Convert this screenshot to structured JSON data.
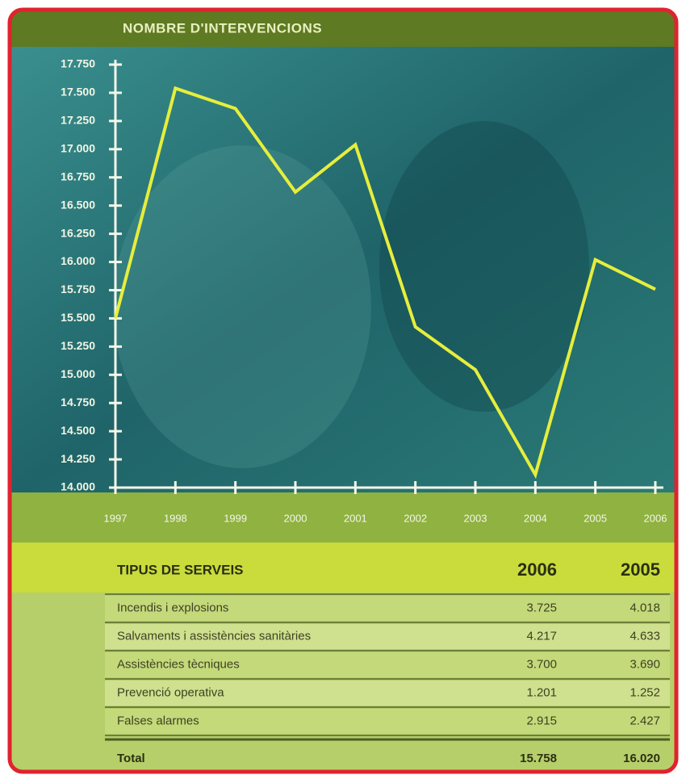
{
  "chart_data": {
    "type": "line",
    "title": "NOMBRE D'INTERVENCIONS",
    "x": [
      "1997",
      "1998",
      "1999",
      "2000",
      "2001",
      "2002",
      "2003",
      "2004",
      "2005",
      "2006"
    ],
    "values": [
      15500,
      17540,
      17360,
      16620,
      17040,
      15425,
      15045,
      14115,
      16020,
      15758
    ],
    "color": "#e6ee3c",
    "ylim": [
      14000,
      17750
    ],
    "yticks": [
      {
        "value": 14000,
        "label": "14.000"
      },
      {
        "value": 14250,
        "label": "14.250"
      },
      {
        "value": 14500,
        "label": "14.500"
      },
      {
        "value": 14750,
        "label": "14.750"
      },
      {
        "value": 15000,
        "label": "15.000"
      },
      {
        "value": 15250,
        "label": "15.250"
      },
      {
        "value": 15500,
        "label": "15.500"
      },
      {
        "value": 15750,
        "label": "15.750"
      },
      {
        "value": 16000,
        "label": "16.000"
      },
      {
        "value": 16250,
        "label": "16.250"
      },
      {
        "value": 16500,
        "label": "16.500"
      },
      {
        "value": 16750,
        "label": "16.750"
      },
      {
        "value": 17000,
        "label": "17.000"
      },
      {
        "value": 17250,
        "label": "17.250"
      },
      {
        "value": 17500,
        "label": "17.500"
      },
      {
        "value": 17750,
        "label": "17.750"
      }
    ],
    "grid": false
  },
  "table": {
    "header": [
      "TIPUS DE SERVEIS",
      "2006",
      "2005"
    ],
    "rows": [
      [
        "Incendis i explosions",
        "3.725",
        "4.018"
      ],
      [
        "Salvaments i assistències sanitàries",
        "4.217",
        "4.633"
      ],
      [
        "Assistències tècniques",
        "3.700",
        "3.690"
      ],
      [
        "Prevenció operativa",
        "1.201",
        "1.252"
      ],
      [
        "Falses alarmes",
        "2.915",
        "2.427"
      ]
    ],
    "total": [
      "Total",
      "15.758",
      "16.020"
    ]
  }
}
